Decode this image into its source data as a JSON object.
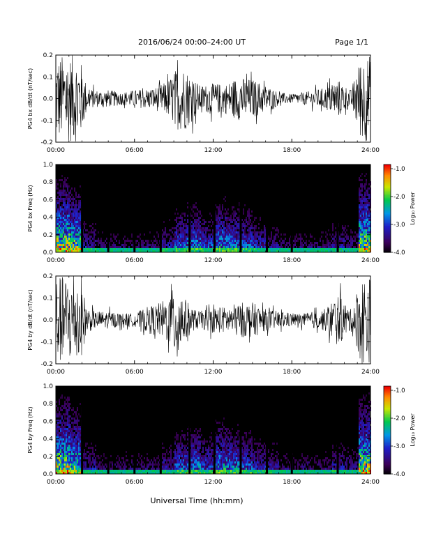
{
  "header": {
    "title": "2016/06/24  00:00–24:00 UT",
    "page": "Page 1/1"
  },
  "xlabel": "Universal Time (hh:mm)",
  "colorbar": {
    "label": "Log₁₀ Power",
    "ticks": [
      "-1.0",
      "-2.0",
      "-3.0",
      "-4.0"
    ],
    "range": [
      -4.0,
      -1.0
    ]
  },
  "chart_data": [
    {
      "type": "line",
      "ylabel": "PG4 bx dB/dt (nT/sec)",
      "xlim": [
        0,
        24
      ],
      "ylim": [
        -0.2,
        0.2
      ],
      "xticks": [
        "00:00",
        "06:00",
        "12:00",
        "18:00",
        "24:00"
      ],
      "yticks": [
        "0.2",
        "0.1",
        "0.0",
        "-0.1",
        "-0.2"
      ],
      "x_hours": [
        0.2,
        1.0,
        1.8,
        2.4,
        3.0,
        4.0,
        5.0,
        6.0,
        7.5,
        8.5,
        9.2,
        9.8,
        10.2,
        11.0,
        12.0,
        13.0,
        13.8,
        15.0,
        15.8,
        17.0,
        18.0,
        19.0,
        20.5,
        21.5,
        22.5,
        23.3,
        23.8
      ],
      "envelope": [
        0.2,
        0.2,
        0.2,
        0.05,
        0.04,
        0.04,
        0.03,
        0.04,
        0.05,
        0.08,
        0.14,
        0.15,
        0.12,
        0.06,
        0.07,
        0.07,
        0.1,
        0.09,
        0.07,
        0.03,
        0.02,
        0.03,
        0.05,
        0.09,
        0.04,
        0.2,
        0.2
      ]
    },
    {
      "type": "heatmap",
      "ylabel": "PG4 bx Freq (Hz)",
      "xlim": [
        0,
        24
      ],
      "ylim": [
        0.0,
        1.0
      ],
      "xticks": [
        "00:00",
        "06:00",
        "12:00",
        "18:00",
        "24:00"
      ],
      "yticks": [
        "1.0",
        "0.8",
        "0.6",
        "0.4",
        "0.2",
        "0.0"
      ],
      "gap_hours": [
        2.0,
        4.0,
        6.0,
        8.0,
        10.2,
        12.1,
        14.1,
        16.1,
        18.0,
        21.5
      ],
      "activity": [
        0.9,
        0.8,
        0.4,
        0.3,
        0.3,
        0.3,
        0.3,
        0.3,
        0.4,
        0.55,
        0.6,
        0.5,
        0.65,
        0.6,
        0.55,
        0.45,
        0.35,
        0.3,
        0.3,
        0.3,
        0.3,
        0.4,
        0.35,
        0.9
      ]
    },
    {
      "type": "line",
      "ylabel": "PG4 by dB/dt (nT/sec)",
      "xlim": [
        0,
        24
      ],
      "ylim": [
        -0.2,
        0.2
      ],
      "xticks": [
        "00:00",
        "06:00",
        "12:00",
        "18:00",
        "24:00"
      ],
      "yticks": [
        "0.2",
        "0.1",
        "0.0",
        "-0.1",
        "-0.2"
      ],
      "x_hours": [
        0.2,
        1.0,
        1.8,
        2.4,
        3.0,
        4.0,
        5.0,
        6.0,
        7.0,
        8.0,
        8.8,
        9.2,
        9.8,
        10.5,
        11.0,
        12.0,
        13.0,
        14.0,
        15.0,
        16.0,
        17.0,
        18.0,
        19.0,
        20.5,
        21.5,
        22.5,
        23.3,
        23.8
      ],
      "envelope": [
        0.2,
        0.2,
        0.2,
        0.06,
        0.04,
        0.04,
        0.03,
        0.03,
        0.06,
        0.08,
        0.12,
        0.2,
        0.1,
        0.05,
        0.04,
        0.06,
        0.06,
        0.08,
        0.08,
        0.05,
        0.04,
        0.03,
        0.03,
        0.05,
        0.12,
        0.05,
        0.2,
        0.2
      ]
    },
    {
      "type": "heatmap",
      "ylabel": "PG4 by Freq (Hz)",
      "xlim": [
        0,
        24
      ],
      "ylim": [
        0.0,
        1.0
      ],
      "xticks": [
        "00:00",
        "06:00",
        "12:00",
        "18:00",
        "24:00"
      ],
      "yticks": [
        "1.0",
        "0.8",
        "0.6",
        "0.4",
        "0.2",
        "0.0"
      ],
      "gap_hours": [
        2.0,
        4.0,
        6.0,
        8.0,
        10.2,
        12.1,
        14.1,
        16.1,
        18.0,
        21.5
      ],
      "activity": [
        0.9,
        0.8,
        0.4,
        0.3,
        0.3,
        0.3,
        0.3,
        0.3,
        0.4,
        0.55,
        0.6,
        0.5,
        0.65,
        0.6,
        0.55,
        0.45,
        0.4,
        0.3,
        0.3,
        0.3,
        0.3,
        0.4,
        0.35,
        0.9
      ]
    }
  ]
}
